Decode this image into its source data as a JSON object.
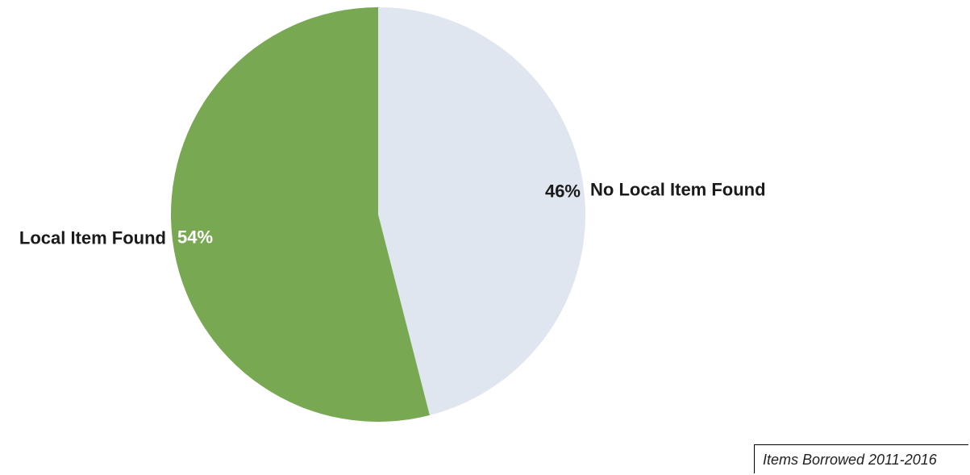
{
  "chart_data": {
    "type": "pie",
    "title": "",
    "slices": [
      {
        "label": "No Local Item Found",
        "value": 46,
        "percent_label": "46%",
        "color": "#dfe6f0"
      },
      {
        "label": "Local Item Found",
        "value": 54,
        "percent_label": "54%",
        "color": "#78a851"
      }
    ],
    "start": "12 o'clock",
    "direction": "clockwise",
    "percent_label_colors": {
      "No Local Item Found": "#1a1a1a",
      "Local Item Found": "#ffffff"
    },
    "category_label_color": "#1a1a1a",
    "legend": "none"
  },
  "caption": {
    "text": "Items Borrowed 2011-2016"
  }
}
